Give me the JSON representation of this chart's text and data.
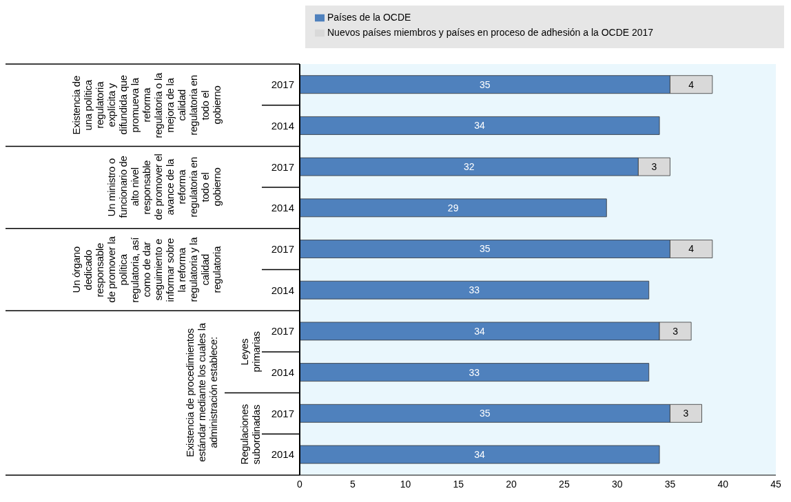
{
  "chart_data": {
    "type": "bar",
    "orientation": "horizontal",
    "stacked": true,
    "data_labels": true,
    "grid": false,
    "legend": "top",
    "categories": [
      "2017",
      "2014",
      "2017",
      "2014",
      "2017",
      "2014",
      "2017",
      "2014",
      "2017",
      "2014"
    ],
    "series": [
      {
        "name": "Países de la OCDE",
        "color": "#4f81bd",
        "values": [
          35,
          34,
          32,
          29,
          35,
          33,
          34,
          33,
          35,
          34
        ]
      },
      {
        "name": "Nuevos países miembros y países en proceso de adhesión a la OCDE 2017",
        "color": "#d9d9d9",
        "values": [
          4,
          null,
          3,
          null,
          4,
          null,
          3,
          null,
          3,
          null
        ]
      }
    ],
    "xlim": [
      0,
      45
    ],
    "xticks": [
      0,
      5,
      10,
      15,
      20,
      25,
      30,
      35,
      40,
      45
    ],
    "annotations": [
      "Existencia de una política regulatoria explícita y difundida que promueva la reforma regulatoria o la mejora de la calidad regulatoria en todo el gobierno",
      "Un ministro o funcionario de alto nivel responsable de promover el avance de la reforma regulatoria en todo el gobierno",
      "Un órgano dedicado responsable de promover la política regulatoria, así como de dar seguimiento e informar sobre la reforma regulatoria y la calidad regulatoria",
      "Existencia de procedimientos estándar mediante los cuales la administración establece:",
      "Leyes primarias",
      "Regulaciones subordinadas"
    ]
  }
}
